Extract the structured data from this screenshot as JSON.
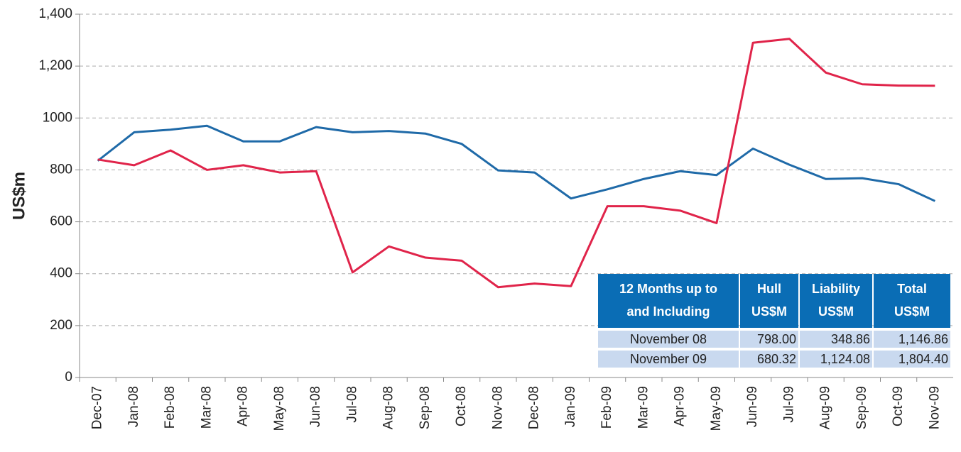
{
  "chart_data": {
    "type": "line",
    "y_label": "US$m",
    "categories": [
      "Dec-07",
      "Jan-08",
      "Feb-08",
      "Mar-08",
      "Apr-08",
      "May-08",
      "Jun-08",
      "Jul-08",
      "Aug-08",
      "Sep-08",
      "Oct-08",
      "Nov-08",
      "Dec-08",
      "Jan-09",
      "Feb-09",
      "Mar-09",
      "Apr-09",
      "May-09",
      "Jun-09",
      "Jul-09",
      "Aug-09",
      "Sep-09",
      "Oct-09",
      "Nov-09"
    ],
    "series": [
      {
        "color": "#1f6aa8",
        "values": [
          835,
          945,
          955,
          970,
          910,
          910,
          965,
          945,
          950,
          940,
          900,
          798,
          790,
          690,
          725,
          765,
          795,
          780,
          882,
          820,
          765,
          768,
          745,
          680
        ]
      },
      {
        "color": "#e0244a",
        "values": [
          840,
          818,
          875,
          800,
          818,
          790,
          795,
          405,
          505,
          462,
          450,
          348,
          362,
          352,
          660,
          660,
          643,
          595,
          1290,
          1305,
          1175,
          1130,
          1125,
          1124
        ]
      }
    ],
    "ylim": [
      0,
      1400
    ],
    "yticks": [
      0,
      200,
      400,
      600,
      800,
      1000,
      {
        "value": 1200,
        "label": "1,200"
      },
      {
        "value": 1400,
        "label": "1,400"
      }
    ],
    "grid": true
  },
  "table": {
    "header": [
      [
        "12 Months up to",
        "and Including"
      ],
      [
        "Hull",
        "US$M"
      ],
      [
        "Liability",
        "US$M"
      ],
      [
        "Total",
        "US$M"
      ]
    ],
    "rows": [
      [
        "November 08",
        "798.00",
        "348.86",
        "1,146.86"
      ],
      [
        "November 09",
        "680.32",
        "1,124.08",
        "1,804.40"
      ]
    ]
  }
}
